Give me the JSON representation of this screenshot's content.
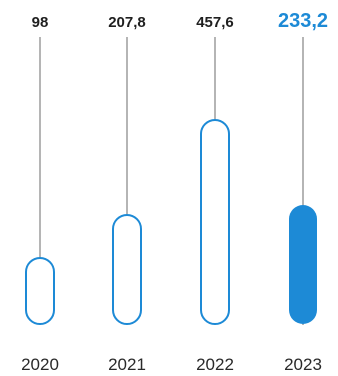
{
  "chart_data": {
    "type": "bar",
    "categories": [
      "2020",
      "2021",
      "2022",
      "2023"
    ],
    "values": [
      98,
      207.8,
      457.6,
      233.2
    ],
    "value_labels": [
      "98",
      "207,8",
      "457,6",
      "233,2"
    ],
    "highlight_index": 3,
    "ylim": [
      0,
      470
    ],
    "grid": false,
    "legend": "none",
    "colors": {
      "accent": "#1d8ad6",
      "outline": "#1d8ad6",
      "text": "#1f1f1f",
      "stem": "#6b6b6b"
    }
  }
}
